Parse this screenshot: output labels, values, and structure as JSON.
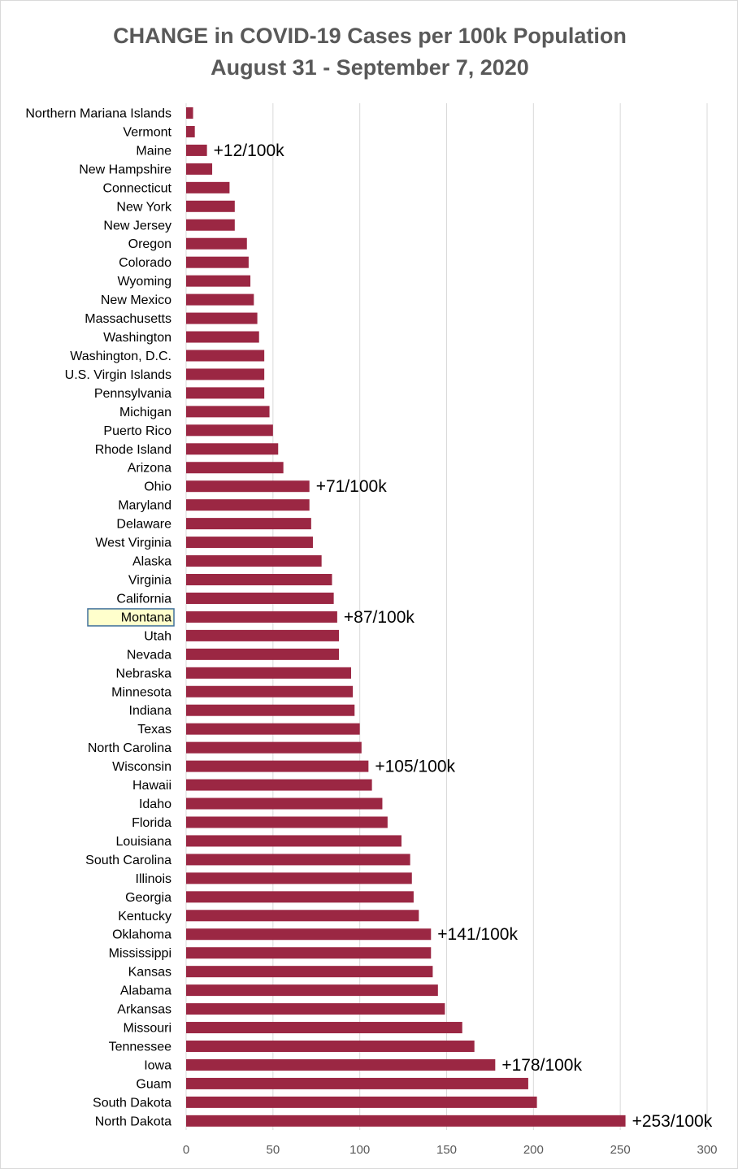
{
  "chart_data": {
    "type": "bar",
    "orientation": "horizontal",
    "title": "CHANGE in COVID-19 Cases per 100k Population",
    "subtitle": "August 31 - September 7, 2020",
    "xlabel": "",
    "ylabel": "",
    "xlim": [
      0,
      300
    ],
    "x_ticks": [
      "0",
      "50",
      "100",
      "150",
      "200",
      "250",
      "300"
    ],
    "grid": "vertical",
    "legend": "none",
    "bar_color": "#9B2743",
    "highlight_category": "Montana",
    "highlight_fill": "#FFFFCC",
    "highlight_border": "#41719C",
    "categories": [
      "Northern Mariana Islands",
      "Vermont",
      "Maine",
      "New Hampshire",
      "Connecticut",
      "New York",
      "New Jersey",
      "Oregon",
      "Colorado",
      "Wyoming",
      "New Mexico",
      "Massachusetts",
      "Washington",
      "Washington, D.C.",
      "U.S. Virgin Islands",
      "Pennsylvania",
      "Michigan",
      "Puerto Rico",
      "Rhode Island",
      "Arizona",
      "Ohio",
      "Maryland",
      "Delaware",
      "West Virginia",
      "Alaska",
      "Virginia",
      "California",
      "Montana",
      "Utah",
      "Nevada",
      "Nebraska",
      "Minnesota",
      "Indiana",
      "Texas",
      "North Carolina",
      "Wisconsin",
      "Hawaii",
      "Idaho",
      "Florida",
      "Louisiana",
      "South Carolina",
      "Illinois",
      "Georgia",
      "Kentucky",
      "Oklahoma",
      "Mississippi",
      "Kansas",
      "Alabama",
      "Arkansas",
      "Missouri",
      "Tennessee",
      "Iowa",
      "Guam",
      "South Dakota",
      "North Dakota"
    ],
    "values": [
      4,
      5,
      12,
      15,
      25,
      28,
      28,
      35,
      36,
      37,
      39,
      41,
      42,
      45,
      45,
      45,
      48,
      50,
      53,
      56,
      71,
      71,
      72,
      73,
      78,
      84,
      85,
      87,
      88,
      88,
      95,
      96,
      97,
      100,
      101,
      105,
      107,
      113,
      116,
      124,
      129,
      130,
      131,
      134,
      141,
      141,
      142,
      145,
      149,
      159,
      166,
      178,
      197,
      202,
      253
    ],
    "annotations": [
      {
        "category": "Maine",
        "text": "+12/100k"
      },
      {
        "category": "Ohio",
        "text": "+71/100k"
      },
      {
        "category": "Montana",
        "text": "+87/100k"
      },
      {
        "category": "Wisconsin",
        "text": "+105/100k"
      },
      {
        "category": "Oklahoma",
        "text": "+141/100k"
      },
      {
        "category": "Iowa",
        "text": "+178/100k"
      },
      {
        "category": "North Dakota",
        "text": "+253/100k"
      }
    ]
  }
}
